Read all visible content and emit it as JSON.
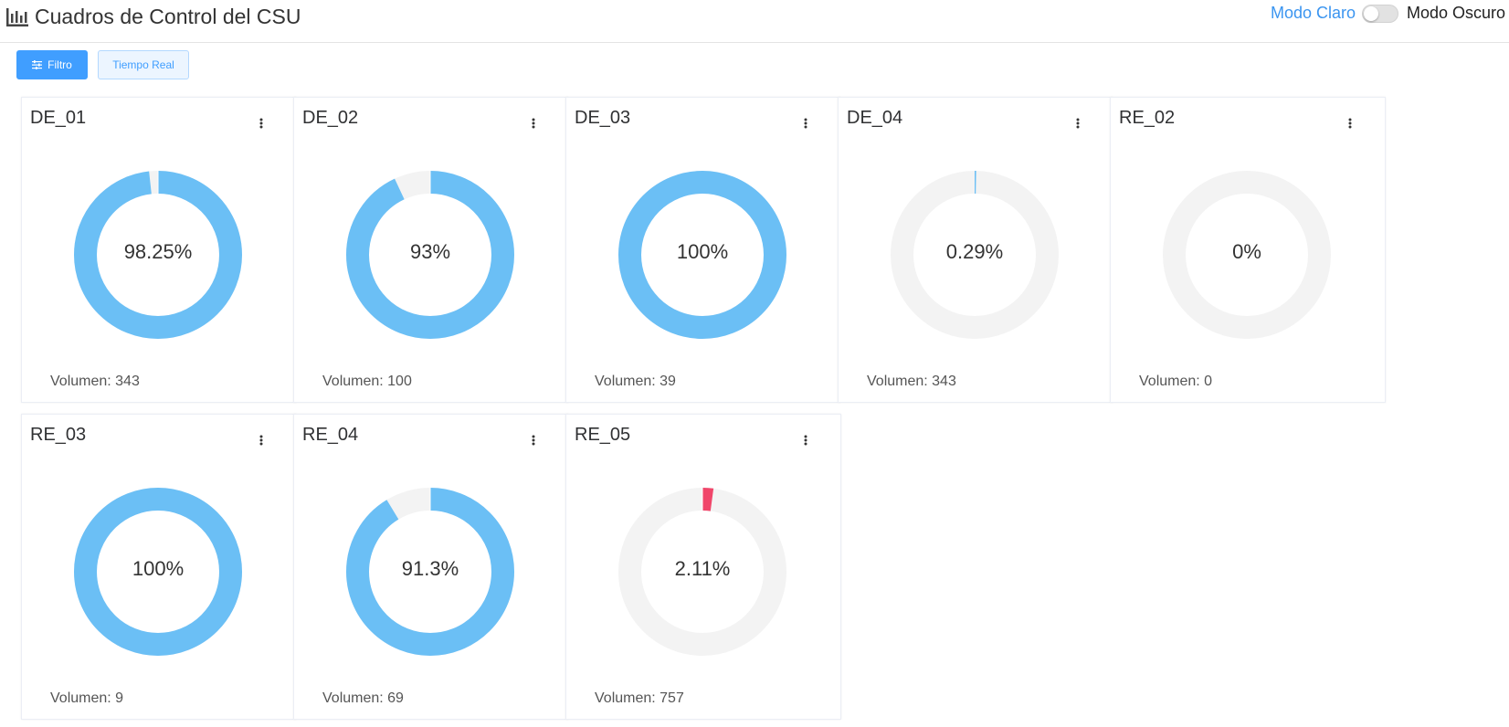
{
  "header": {
    "title": "Cuadros de Control del CSU",
    "mode_light_label": "Modo Claro",
    "mode_dark_label": "Modo Oscuro",
    "dark_mode_enabled": false
  },
  "toolbar": {
    "filter_label": "Filtro",
    "realtime_label": "Tiempo Real"
  },
  "colors": {
    "accent": "#409eff",
    "donut_fill": "#6bbff5",
    "donut_alert": "#f0466a",
    "donut_track": "#f3f3f3"
  },
  "icons": {
    "app": "bar-chart-icon",
    "filter": "sliders-icon",
    "card_menu": "vertical-ellipsis-icon"
  },
  "cards": [
    {
      "title": "DE_01",
      "percent_label": "98.25%",
      "value": 98.25,
      "volume_label": "Volumen: 343",
      "status": "normal"
    },
    {
      "title": "DE_02",
      "percent_label": "93%",
      "value": 93,
      "volume_label": "Volumen: 100",
      "status": "normal"
    },
    {
      "title": "DE_03",
      "percent_label": "100%",
      "value": 100,
      "volume_label": "Volumen: 39",
      "status": "normal"
    },
    {
      "title": "DE_04",
      "percent_label": "0.29%",
      "value": 0.29,
      "volume_label": "Volumen: 343",
      "status": "normal"
    },
    {
      "title": "RE_02",
      "percent_label": "0%",
      "value": 0,
      "volume_label": "Volumen: 0",
      "status": "normal"
    },
    {
      "title": "RE_03",
      "percent_label": "100%",
      "value": 100,
      "volume_label": "Volumen: 9",
      "status": "normal"
    },
    {
      "title": "RE_04",
      "percent_label": "91.3%",
      "value": 91.3,
      "volume_label": "Volumen: 69",
      "status": "normal"
    },
    {
      "title": "RE_05",
      "percent_label": "2.11%",
      "value": 2.11,
      "volume_label": "Volumen: 757",
      "status": "alert"
    }
  ]
}
